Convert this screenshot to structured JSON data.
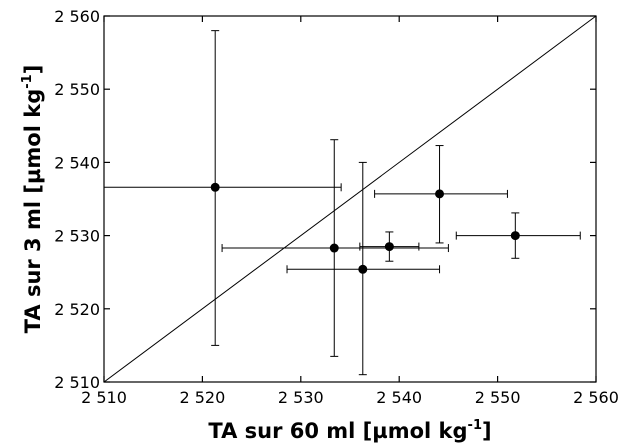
{
  "chart_data": {
    "type": "scatter",
    "xlabel": "TA sur 60 ml [µmol kg",
    "xlabel_sup": "-1",
    "xlabel_tail": "]",
    "ylabel": "TA sur 3 ml [µmol kg",
    "ylabel_sup": "-1",
    "ylabel_tail": "]",
    "xlim": [
      2510,
      2560
    ],
    "ylim": [
      2510,
      2560
    ],
    "xticks": [
      2510,
      2520,
      2530,
      2540,
      2550,
      2560
    ],
    "yticks": [
      2510,
      2520,
      2530,
      2540,
      2550,
      2560
    ],
    "xtick_labels": [
      "2 510",
      "2 520",
      "2 530",
      "2 540",
      "2 550",
      "2 560"
    ],
    "ytick_labels": [
      "2 510",
      "2 520",
      "2 530",
      "2 540",
      "2 550",
      "2 560"
    ],
    "grid": false,
    "reference_line": {
      "x": [
        2510,
        2560
      ],
      "y": [
        2510,
        2560
      ]
    },
    "points": [
      {
        "x": 2521.3,
        "y": 2536.6,
        "x_err": [
          2510.0,
          2534.1
        ],
        "y_err": [
          2515.0,
          2558.0
        ]
      },
      {
        "x": 2533.4,
        "y": 2528.3,
        "x_err": [
          2522.0,
          2545.0
        ],
        "y_err": [
          2513.5,
          2543.1
        ]
      },
      {
        "x": 2536.3,
        "y": 2525.4,
        "x_err": [
          2528.6,
          2544.1
        ],
        "y_err": [
          2511.0,
          2540.0
        ]
      },
      {
        "x": 2539.0,
        "y": 2528.5,
        "x_err": [
          2536.0,
          2542.0
        ],
        "y_err": [
          2526.5,
          2530.5
        ]
      },
      {
        "x": 2544.1,
        "y": 2535.7,
        "x_err": [
          2537.5,
          2551.0
        ],
        "y_err": [
          2529.0,
          2542.3
        ]
      },
      {
        "x": 2551.8,
        "y": 2530.0,
        "x_err": [
          2545.8,
          2558.4
        ],
        "y_err": [
          2526.9,
          2533.1
        ]
      }
    ]
  }
}
